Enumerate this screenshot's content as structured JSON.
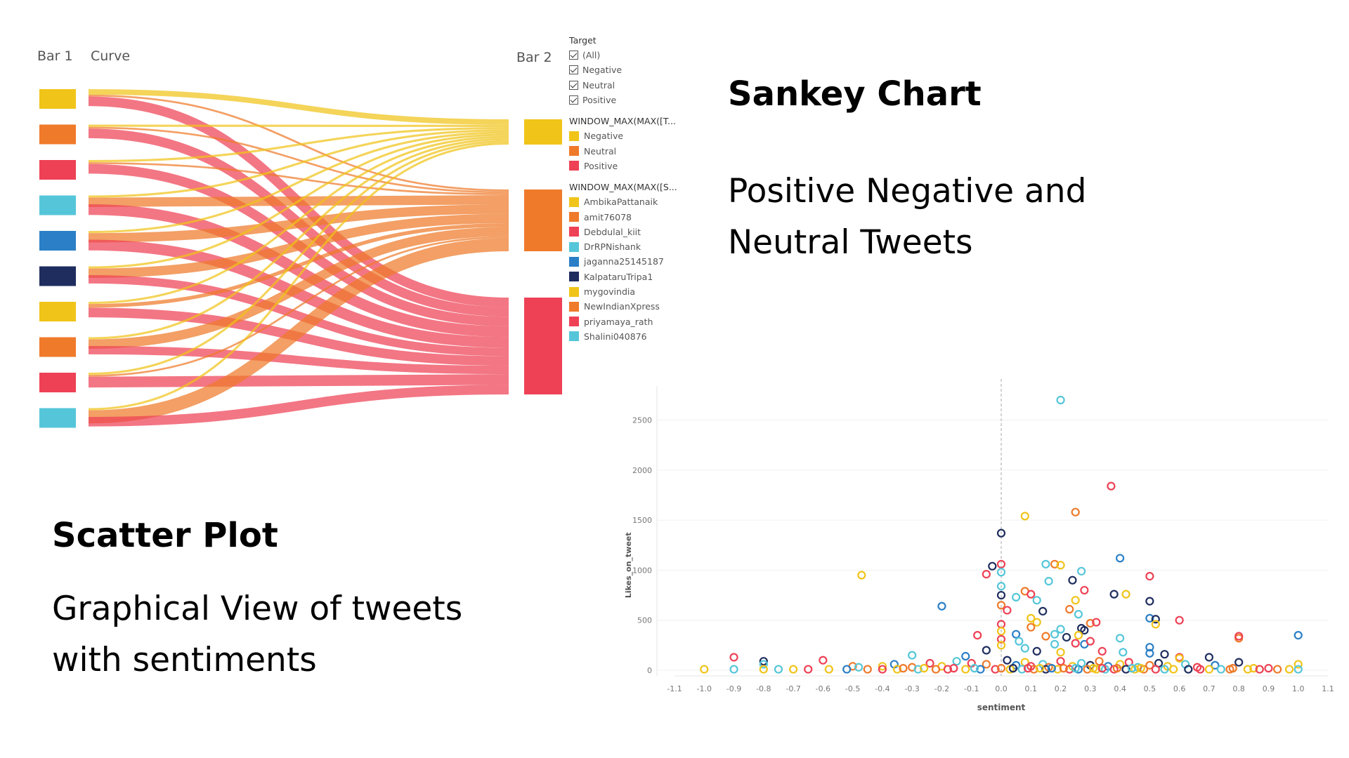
{
  "sankey_title": "Sankey Chart",
  "sankey_subtitle_line1": "Positive Negative and",
  "sankey_subtitle_line2": "Neutral Tweets",
  "scatter_title": "Scatter Plot",
  "scatter_subtitle_line1": "Graphical View of tweets",
  "scatter_subtitle_line2": "with sentiments",
  "legend": {
    "target_title": "Target",
    "target_items": [
      "(All)",
      "Negative",
      "Neutral",
      "Positive"
    ],
    "window1_title": "WINDOW_MAX(MAX([T...",
    "window1_items": [
      {
        "label": "Negative",
        "color": "#f0c419"
      },
      {
        "label": "Neutral",
        "color": "#ef7a2a"
      },
      {
        "label": "Positive",
        "color": "#ee4155"
      }
    ],
    "window2_title": "WINDOW_MAX(MAX([S...",
    "window2_items": [
      {
        "label": "AmbikaPattanaik",
        "color": "#f0c419"
      },
      {
        "label": "amit76078",
        "color": "#ef7a2a"
      },
      {
        "label": "Debdulal_kiit",
        "color": "#ee4155"
      },
      {
        "label": "DrRPNishank",
        "color": "#55c6d9"
      },
      {
        "label": "jaganna25145187",
        "color": "#2a7fc6"
      },
      {
        "label": "KalpataruTripa1",
        "color": "#1f2d5e"
      },
      {
        "label": "mygovindia",
        "color": "#f0c419"
      },
      {
        "label": "NewIndianXpress",
        "color": "#ef7a2a"
      },
      {
        "label": "priyamaya_rath",
        "color": "#ee4155"
      },
      {
        "label": "Shalini040876",
        "color": "#55c6d9"
      }
    ]
  },
  "chart_data": [
    {
      "type": "sankey",
      "column_labels": [
        "Bar 1",
        "Curve",
        "Bar 2"
      ],
      "sources": [
        "AmbikaPattanaik",
        "amit76078",
        "Debdulal_kiit",
        "DrRPNishank",
        "jaganna25145187",
        "KalpataruTripa1",
        "mygovindia",
        "NewIndianXpress",
        "priyamaya_rath",
        "Shalini040876"
      ],
      "source_colors": [
        "#f0c419",
        "#ef7a2a",
        "#ee4155",
        "#55c6d9",
        "#2a7fc6",
        "#1f2d5e",
        "#f0c419",
        "#ef7a2a",
        "#ee4155",
        "#55c6d9"
      ],
      "targets": [
        "Negative",
        "Neutral",
        "Positive"
      ],
      "target_colors": [
        "#f0c419",
        "#ef7a2a",
        "#ee4155"
      ],
      "flows": [
        [
          5,
          2,
          16
        ],
        [
          2,
          2,
          16
        ],
        [
          2,
          2,
          16
        ],
        [
          2,
          10,
          18
        ],
        [
          2,
          10,
          18
        ],
        [
          2,
          10,
          14
        ],
        [
          2,
          4,
          16
        ],
        [
          2,
          10,
          14
        ],
        [
          2,
          2,
          18
        ],
        [
          2,
          14,
          16
        ]
      ]
    },
    {
      "type": "scatter",
      "xlabel": "sentiment",
      "ylabel": "Likes_on_tweet",
      "xlim": [
        -1.1,
        1.1
      ],
      "ylim": [
        0,
        2700
      ],
      "x_ticks": [
        "-1.1",
        "-1.0",
        "-0.9",
        "-0.8",
        "-0.7",
        "-0.6",
        "-0.5",
        "-0.4",
        "-0.3",
        "-0.2",
        "-0.1",
        "0.0",
        "0.1",
        "0.2",
        "0.3",
        "0.4",
        "0.5",
        "0.6",
        "0.7",
        "0.8",
        "0.9",
        "1.0",
        "1.1"
      ],
      "y_ticks": [
        "0",
        "500",
        "1000",
        "1500",
        "2000",
        "2500"
      ],
      "reference_line_x": 0,
      "points": [
        [
          0.2,
          2700,
          3
        ],
        [
          0.37,
          1840,
          2
        ],
        [
          0.08,
          1540,
          0
        ],
        [
          0.25,
          1580,
          1
        ],
        [
          0.0,
          1370,
          5
        ],
        [
          -0.03,
          1040,
          5
        ],
        [
          0.0,
          1060,
          2
        ],
        [
          -0.05,
          960,
          2
        ],
        [
          0.0,
          980,
          3
        ],
        [
          -0.47,
          950,
          0
        ],
        [
          0.15,
          1060,
          3
        ],
        [
          0.18,
          1060,
          1
        ],
        [
          0.2,
          1050,
          0
        ],
        [
          0.27,
          990,
          3
        ],
        [
          0.4,
          1120,
          4
        ],
        [
          0.5,
          940,
          2
        ],
        [
          0.24,
          900,
          5
        ],
        [
          0.16,
          890,
          3
        ],
        [
          0.0,
          840,
          3
        ],
        [
          0.08,
          790,
          1
        ],
        [
          0.1,
          760,
          2
        ],
        [
          0.28,
          800,
          2
        ],
        [
          0.38,
          760,
          5
        ],
        [
          0.42,
          760,
          0
        ],
        [
          0.0,
          750,
          5
        ],
        [
          0.05,
          730,
          3
        ],
        [
          0.12,
          700,
          3
        ],
        [
          0.25,
          700,
          0
        ],
        [
          0.5,
          690,
          5
        ],
        [
          -0.2,
          640,
          4
        ],
        [
          0.0,
          650,
          1
        ],
        [
          0.02,
          600,
          2
        ],
        [
          0.14,
          590,
          5
        ],
        [
          0.23,
          610,
          1
        ],
        [
          0.26,
          560,
          3
        ],
        [
          0.5,
          520,
          4
        ],
        [
          0.52,
          510,
          5
        ],
        [
          0.52,
          460,
          0
        ],
        [
          0.6,
          500,
          2
        ],
        [
          0.1,
          520,
          0
        ],
        [
          0.12,
          480,
          0
        ],
        [
          0.3,
          470,
          1
        ],
        [
          0.32,
          480,
          2
        ],
        [
          0.0,
          460,
          2
        ],
        [
          0.1,
          430,
          1
        ],
        [
          0.2,
          410,
          3
        ],
        [
          0.27,
          420,
          5
        ],
        [
          0.28,
          400,
          5
        ],
        [
          0.0,
          390,
          0
        ],
        [
          -0.08,
          350,
          2
        ],
        [
          0.05,
          360,
          4
        ],
        [
          0.15,
          340,
          1
        ],
        [
          0.18,
          360,
          3
        ],
        [
          0.22,
          330,
          5
        ],
        [
          0.26,
          350,
          0
        ],
        [
          0.8,
          320,
          1
        ],
        [
          0.8,
          340,
          2
        ],
        [
          1.0,
          350,
          4
        ],
        [
          0.0,
          310,
          2
        ],
        [
          0.4,
          320,
          3
        ],
        [
          0.06,
          290,
          3
        ],
        [
          0.18,
          260,
          3
        ],
        [
          0.25,
          270,
          2
        ],
        [
          0.28,
          260,
          4
        ],
        [
          0.3,
          290,
          2
        ],
        [
          0.5,
          230,
          4
        ],
        [
          0.0,
          250,
          0
        ],
        [
          -0.05,
          200,
          5
        ],
        [
          0.08,
          220,
          3
        ],
        [
          0.12,
          190,
          5
        ],
        [
          0.2,
          180,
          0
        ],
        [
          0.34,
          190,
          2
        ],
        [
          0.41,
          180,
          3
        ],
        [
          0.5,
          170,
          4
        ],
        [
          0.55,
          160,
          5
        ],
        [
          0.6,
          130,
          2
        ],
        [
          0.6,
          120,
          0
        ],
        [
          0.7,
          130,
          5
        ],
        [
          -0.3,
          150,
          3
        ],
        [
          -0.12,
          140,
          4
        ],
        [
          -0.9,
          130,
          2
        ],
        [
          -0.6,
          100,
          2
        ],
        [
          -0.8,
          90,
          5
        ],
        [
          -0.8,
          60,
          3
        ],
        [
          -0.5,
          40,
          1
        ],
        [
          -0.48,
          30,
          3
        ],
        [
          -0.4,
          40,
          0
        ],
        [
          -0.36,
          60,
          4
        ],
        [
          -0.3,
          30,
          1
        ],
        [
          -0.24,
          70,
          2
        ],
        [
          -0.2,
          40,
          0
        ],
        [
          -0.15,
          90,
          3
        ],
        [
          -0.1,
          70,
          2
        ],
        [
          -0.05,
          60,
          1
        ],
        [
          0.02,
          100,
          5
        ],
        [
          0.05,
          50,
          4
        ],
        [
          0.08,
          80,
          0
        ],
        [
          0.1,
          40,
          2
        ],
        [
          0.14,
          60,
          3
        ],
        [
          0.16,
          30,
          1
        ],
        [
          0.2,
          90,
          2
        ],
        [
          0.24,
          40,
          0
        ],
        [
          0.27,
          70,
          3
        ],
        [
          0.3,
          50,
          5
        ],
        [
          0.33,
          90,
          1
        ],
        [
          0.36,
          40,
          4
        ],
        [
          0.4,
          60,
          0
        ],
        [
          0.43,
          80,
          2
        ],
        [
          0.46,
          30,
          3
        ],
        [
          0.5,
          50,
          1
        ],
        [
          0.53,
          70,
          5
        ],
        [
          0.56,
          40,
          0
        ],
        [
          0.62,
          60,
          3
        ],
        [
          0.66,
          30,
          2
        ],
        [
          0.72,
          50,
          4
        ],
        [
          0.78,
          20,
          1
        ],
        [
          0.8,
          80,
          5
        ],
        [
          0.85,
          20,
          0
        ],
        [
          0.9,
          20,
          2
        ],
        [
          1.0,
          60,
          0
        ],
        [
          1.0,
          10,
          3
        ],
        [
          -1.0,
          10,
          0
        ],
        [
          -0.9,
          10,
          3
        ],
        [
          -0.8,
          10,
          0
        ],
        [
          -0.75,
          10,
          3
        ],
        [
          -0.7,
          10,
          0
        ],
        [
          -0.65,
          10,
          2
        ],
        [
          -0.58,
          10,
          0
        ],
        [
          -0.52,
          10,
          4
        ],
        [
          -0.45,
          10,
          1
        ],
        [
          -0.4,
          10,
          2
        ],
        [
          -0.35,
          10,
          0
        ],
        [
          -0.28,
          10,
          3
        ],
        [
          -0.22,
          10,
          1
        ],
        [
          -0.18,
          10,
          2
        ],
        [
          -0.12,
          10,
          0
        ],
        [
          -0.07,
          10,
          4
        ],
        [
          -0.02,
          10,
          2
        ],
        [
          0.03,
          10,
          0
        ],
        [
          0.07,
          10,
          3
        ],
        [
          0.11,
          10,
          1
        ],
        [
          0.15,
          10,
          5
        ],
        [
          0.19,
          10,
          0
        ],
        [
          0.23,
          10,
          2
        ],
        [
          0.26,
          10,
          4
        ],
        [
          0.29,
          10,
          1
        ],
        [
          0.32,
          10,
          0
        ],
        [
          0.35,
          10,
          3
        ],
        [
          0.38,
          10,
          2
        ],
        [
          0.42,
          10,
          5
        ],
        [
          0.45,
          10,
          0
        ],
        [
          0.48,
          10,
          1
        ],
        [
          0.52,
          10,
          2
        ],
        [
          0.55,
          10,
          3
        ],
        [
          0.58,
          10,
          0
        ],
        [
          0.63,
          10,
          5
        ],
        [
          0.67,
          10,
          2
        ],
        [
          0.7,
          10,
          0
        ],
        [
          0.74,
          10,
          3
        ],
        [
          0.77,
          10,
          1
        ],
        [
          0.83,
          10,
          0
        ],
        [
          0.87,
          10,
          2
        ],
        [
          0.93,
          10,
          1
        ],
        [
          0.97,
          10,
          0
        ],
        [
          -0.33,
          20,
          1
        ],
        [
          -0.26,
          20,
          0
        ],
        [
          -0.16,
          20,
          2
        ],
        [
          -0.09,
          20,
          3
        ],
        [
          0.0,
          20,
          1
        ],
        [
          0.04,
          20,
          5
        ],
        [
          0.09,
          20,
          2
        ],
        [
          0.13,
          20,
          0
        ],
        [
          0.17,
          20,
          4
        ],
        [
          0.21,
          20,
          1
        ],
        [
          0.25,
          20,
          3
        ],
        [
          0.31,
          20,
          0
        ],
        [
          0.34,
          20,
          2
        ],
        [
          0.39,
          20,
          1
        ],
        [
          0.44,
          20,
          3
        ],
        [
          0.47,
          20,
          0
        ]
      ],
      "point_colors": [
        "#f0c419",
        "#ef7a2a",
        "#ee4155",
        "#55c6d9",
        "#2a7fc6",
        "#1f2d5e"
      ]
    }
  ]
}
